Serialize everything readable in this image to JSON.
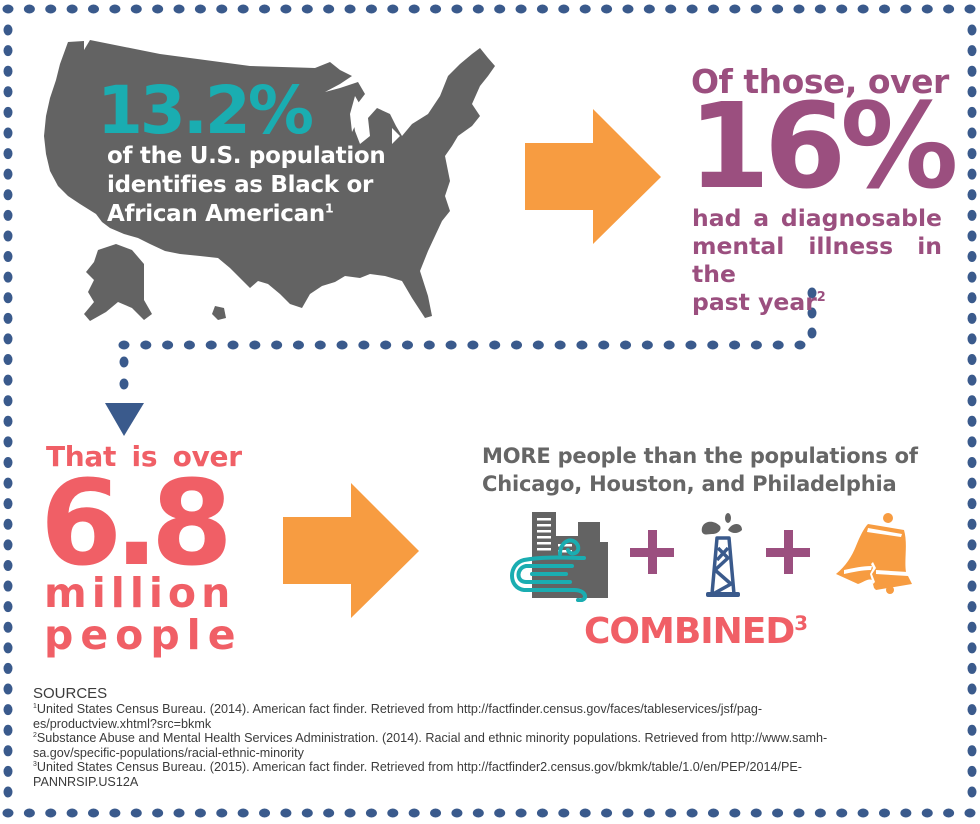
{
  "colors": {
    "border_dots": "#3a5a8c",
    "map_gray": "#636363",
    "teal": "#1aadb1",
    "orange_arrow": "#f79c41",
    "purple": "#9b4f7f",
    "coral": "#f05f66",
    "gray_text": "#666666"
  },
  "panel1": {
    "stat": "13.2%",
    "caption_lines": [
      "of the U.S. population",
      "identifies as Black or",
      "African American"
    ],
    "footnote": "1",
    "icon": "us-map-icon"
  },
  "panel2": {
    "lead": "Of those, over",
    "stat": "16%",
    "caption_lines": [
      "had a diagnosable",
      "mental illness in the",
      "past year"
    ],
    "footnote": "2"
  },
  "panel3": {
    "lead": "That is over",
    "stat": "6.8",
    "line1": "million",
    "line2": "people"
  },
  "panel4": {
    "heading_lines": [
      "MORE people than the populations of",
      "Chicago, Houston, and Philadelphia"
    ],
    "icons": [
      "chicago-windy-city-icon",
      "plus-icon",
      "houston-oil-derrick-icon",
      "plus-icon",
      "philadelphia-liberty-bell-icon"
    ],
    "combined": "COMBINED",
    "footnote": "3"
  },
  "sources": {
    "title": "SOURCES",
    "entries": [
      {
        "num": "1",
        "line1": "United States Census Bureau. (2014). American fact finder. Retrieved from http://factfinder.census.gov/faces/tableservices/jsf/pag-",
        "line2": "es/productview.xhtml?src=bkmk"
      },
      {
        "num": "2",
        "line1": "Substance Abuse and Mental Health Services Administration. (2014).  Racial and ethnic minority populations. Retrieved from http://www.samh-",
        "line2": "sa.gov/specific-populations/racial-ethnic-minority"
      },
      {
        "num": "3",
        "line1": "United States Census Bureau. (2015). American fact finder. Retrieved from http://factfinder2.census.gov/bkmk/table/1.0/en/PEP/2014/PE-",
        "line2": "PANNRSIP.US12A"
      }
    ]
  }
}
